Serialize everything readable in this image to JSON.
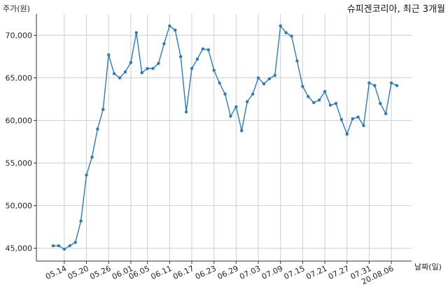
{
  "chart_data": {
    "type": "line",
    "title": "슈피겐코리아, 최근 3개월",
    "xlabel": "날짜(일)",
    "ylabel": "주가(원)",
    "ylim": [
      43500,
      72500
    ],
    "yticks": [
      45000,
      50000,
      55000,
      60000,
      65000,
      70000
    ],
    "ytick_labels": [
      "45,000",
      "50,000",
      "55,000",
      "60,000",
      "65,000",
      "70,000"
    ],
    "xtick_labels": [
      "05.14",
      "05.20",
      "05.26",
      "06.01",
      "06.05",
      "06.11",
      "06.17",
      "06.23",
      "06.29",
      "07.03",
      "07.09",
      "07.15",
      "07.21",
      "07.27",
      "07.31",
      "20.08.06"
    ],
    "xtick_index": [
      2,
      6,
      10,
      14,
      17,
      21,
      25,
      29,
      33,
      37,
      41,
      45,
      49,
      53,
      57,
      61
    ],
    "grid": true,
    "color": "#2b7bba",
    "series": [
      {
        "values": [
          45300,
          45300,
          44900,
          45300,
          45700,
          48200,
          53600,
          55700,
          59000,
          61300,
          67700,
          65500,
          65000,
          65700,
          66800,
          70300,
          65600,
          66100,
          66100,
          66700,
          69000,
          71100,
          70600,
          67500,
          61000,
          66100,
          67200,
          68400,
          68300,
          65900,
          64400,
          63100,
          60500,
          61600,
          58800,
          62200,
          63100,
          65000,
          64300,
          64900,
          65300,
          71100,
          70300,
          69900,
          67000,
          64000,
          62800,
          62100,
          62400,
          63400,
          61800,
          62000,
          60100,
          58400,
          60200,
          60400,
          59400,
          64400,
          64100,
          62000,
          60800,
          64400,
          64100
        ]
      }
    ]
  }
}
